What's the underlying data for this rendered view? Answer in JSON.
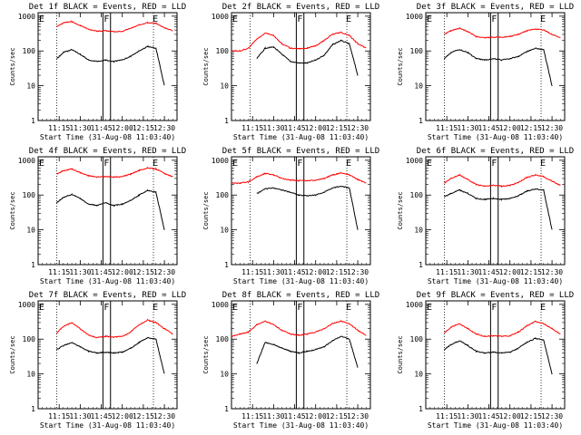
{
  "ylabel": "Counts/sec",
  "xlabel": "Start Time (31-Aug-08 11:03:40)",
  "xtick_labels": [
    "11:15",
    "11:30",
    "11:45",
    "12:00",
    "12:15",
    "12:30"
  ],
  "ytick_labels": [
    "1",
    "10",
    "100",
    "1000"
  ],
  "colors": {
    "events": "#000000",
    "lld": "#ff0000"
  },
  "chart_data": [
    {
      "type": "line",
      "title": "Det 1f BLACK = Events, RED = LLD",
      "flags": [
        "E",
        "F",
        "E"
      ],
      "x": [
        11.22,
        11.3,
        11.4,
        11.5,
        11.6,
        11.7,
        11.8,
        11.9,
        12.0,
        12.1,
        12.2,
        12.3,
        12.4,
        12.5,
        12.6
      ],
      "series": [
        {
          "name": "BLACK = Events",
          "values": [
            60,
            90,
            110,
            80,
            55,
            50,
            55,
            50,
            55,
            70,
            100,
            135,
            120,
            10,
            null
          ]
        },
        {
          "name": "RED = LLD",
          "values": [
            500,
            640,
            700,
            540,
            420,
            370,
            380,
            360,
            370,
            450,
            560,
            650,
            620,
            460,
            380
          ]
        }
      ]
    },
    {
      "type": "line",
      "title": "Det 2f BLACK = Events, RED = LLD",
      "flags": [
        "E",
        "F",
        "E"
      ],
      "x": [
        11.0,
        11.1,
        11.2,
        11.3,
        11.4,
        11.5,
        11.6,
        11.7,
        11.8,
        11.9,
        12.0,
        12.1,
        12.2,
        12.3,
        12.4,
        12.5,
        12.6
      ],
      "series": [
        {
          "name": "BLACK = Events",
          "values": [
            null,
            null,
            null,
            60,
            120,
            130,
            80,
            50,
            45,
            45,
            55,
            75,
            150,
            200,
            160,
            20,
            null
          ]
        },
        {
          "name": "RED = LLD",
          "values": [
            100,
            100,
            120,
            220,
            330,
            280,
            160,
            120,
            115,
            120,
            140,
            200,
            300,
            340,
            280,
            160,
            120
          ]
        }
      ]
    },
    {
      "type": "line",
      "title": "Det 3f BLACK = Events, RED = LLD",
      "flags": [
        "E",
        "F",
        "E"
      ],
      "x": [
        11.22,
        11.3,
        11.4,
        11.5,
        11.6,
        11.7,
        11.8,
        11.9,
        12.0,
        12.1,
        12.2,
        12.3,
        12.4,
        12.5,
        12.6
      ],
      "series": [
        {
          "name": "BLACK = Events",
          "values": [
            60,
            90,
            110,
            90,
            60,
            55,
            60,
            55,
            60,
            70,
            95,
            120,
            110,
            10,
            null
          ]
        },
        {
          "name": "RED = LLD",
          "values": [
            300,
            380,
            450,
            360,
            260,
            240,
            250,
            250,
            260,
            300,
            380,
            430,
            400,
            300,
            240
          ]
        }
      ]
    },
    {
      "type": "line",
      "title": "Det 4f BLACK = Events, RED = LLD",
      "flags": [
        "E",
        "F",
        "E"
      ],
      "x": [
        11.22,
        11.3,
        11.4,
        11.5,
        11.6,
        11.7,
        11.8,
        11.9,
        12.0,
        12.1,
        12.2,
        12.3,
        12.4,
        12.5,
        12.6
      ],
      "series": [
        {
          "name": "BLACK = Events",
          "values": [
            60,
            85,
            105,
            80,
            55,
            50,
            60,
            50,
            55,
            70,
            100,
            135,
            120,
            10,
            null
          ]
        },
        {
          "name": "RED = LLD",
          "values": [
            400,
            500,
            560,
            440,
            360,
            330,
            340,
            330,
            340,
            400,
            510,
            600,
            560,
            420,
            340
          ]
        }
      ]
    },
    {
      "type": "line",
      "title": "Det 5f BLACK = Events, RED = LLD",
      "flags": [
        "E",
        "F",
        "E"
      ],
      "x": [
        11.0,
        11.1,
        11.2,
        11.3,
        11.4,
        11.5,
        11.6,
        11.7,
        11.8,
        11.9,
        12.0,
        12.1,
        12.2,
        12.3,
        12.4,
        12.5,
        12.6
      ],
      "series": [
        {
          "name": "BLACK = Events",
          "values": [
            null,
            null,
            null,
            110,
            150,
            160,
            140,
            120,
            100,
            95,
            100,
            120,
            160,
            180,
            160,
            10,
            null
          ]
        },
        {
          "name": "RED = LLD",
          "values": [
            220,
            220,
            240,
            330,
            420,
            380,
            300,
            270,
            260,
            260,
            270,
            300,
            380,
            430,
            380,
            280,
            220
          ]
        }
      ]
    },
    {
      "type": "line",
      "title": "Det 6f BLACK = Events, RED = LLD",
      "flags": [
        "E",
        "F",
        "E"
      ],
      "x": [
        11.22,
        11.3,
        11.4,
        11.5,
        11.6,
        11.7,
        11.8,
        11.9,
        12.0,
        12.1,
        12.2,
        12.3,
        12.4,
        12.5,
        12.6
      ],
      "series": [
        {
          "name": "BLACK = Events",
          "values": [
            90,
            110,
            140,
            110,
            80,
            75,
            80,
            75,
            80,
            95,
            130,
            150,
            140,
            10,
            null
          ]
        },
        {
          "name": "RED = LLD",
          "values": [
            220,
            300,
            380,
            280,
            200,
            180,
            190,
            180,
            190,
            230,
            320,
            380,
            340,
            250,
            190
          ]
        }
      ]
    },
    {
      "type": "line",
      "title": "Det 7f BLACK = Events, RED = LLD",
      "flags": [
        "E",
        "F",
        "E"
      ],
      "x": [
        11.22,
        11.3,
        11.4,
        11.5,
        11.6,
        11.7,
        11.8,
        11.9,
        12.0,
        12.1,
        12.2,
        12.3,
        12.4,
        12.5,
        12.6
      ],
      "series": [
        {
          "name": "BLACK = Events",
          "values": [
            50,
            65,
            80,
            60,
            45,
            40,
            42,
            40,
            42,
            55,
            80,
            110,
            100,
            10,
            null
          ]
        },
        {
          "name": "RED = LLD",
          "values": [
            150,
            230,
            300,
            200,
            130,
            110,
            120,
            115,
            120,
            160,
            260,
            350,
            300,
            200,
            140
          ]
        }
      ]
    },
    {
      "type": "line",
      "title": "Det 8f BLACK = Events, RED = LLD",
      "flags": [
        "E",
        "F",
        "E"
      ],
      "x": [
        11.0,
        11.1,
        11.2,
        11.3,
        11.4,
        11.5,
        11.6,
        11.7,
        11.8,
        11.9,
        12.0,
        12.1,
        12.2,
        12.3,
        12.4,
        12.5,
        12.6
      ],
      "series": [
        {
          "name": "BLACK = Events",
          "values": [
            null,
            null,
            null,
            20,
            80,
            70,
            55,
            45,
            40,
            45,
            50,
            60,
            90,
            120,
            100,
            15,
            null
          ]
        },
        {
          "name": "RED = LLD",
          "values": [
            120,
            140,
            160,
            260,
            330,
            260,
            180,
            140,
            130,
            140,
            160,
            200,
            280,
            330,
            280,
            180,
            130
          ]
        }
      ]
    },
    {
      "type": "line",
      "title": "Det 9f BLACK = Events, RED = LLD",
      "flags": [
        "E",
        "F",
        "E"
      ],
      "x": [
        11.22,
        11.3,
        11.4,
        11.5,
        11.6,
        11.7,
        11.8,
        11.9,
        12.0,
        12.1,
        12.2,
        12.3,
        12.4,
        12.5,
        12.6
      ],
      "series": [
        {
          "name": "BLACK = Events",
          "values": [
            50,
            70,
            90,
            65,
            45,
            40,
            42,
            40,
            42,
            55,
            80,
            105,
            95,
            10,
            null
          ]
        },
        {
          "name": "RED = LLD",
          "values": [
            150,
            220,
            280,
            200,
            140,
            120,
            125,
            120,
            125,
            160,
            240,
            320,
            280,
            200,
            140
          ]
        }
      ]
    }
  ]
}
